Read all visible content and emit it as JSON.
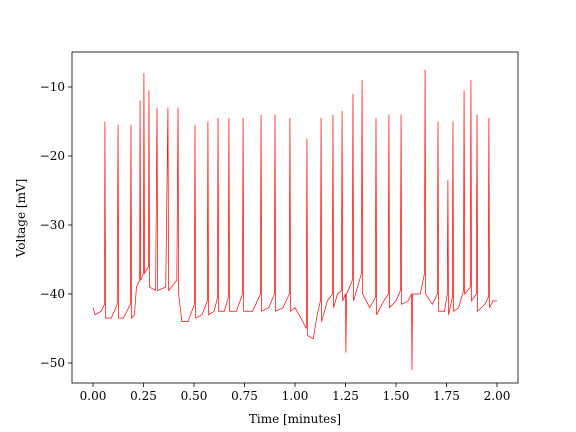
{
  "chart_data": {
    "type": "line",
    "x_label": "Time [minutes]",
    "y_label": "Voltage [mV]",
    "xlim": [
      -0.104,
      2.104
    ],
    "ylim": [
      -52.9,
      -4.93
    ],
    "xticks": [
      {
        "value": 0,
        "label": "0.00"
      },
      {
        "value": 0.25,
        "label": "0.25"
      },
      {
        "value": 0.5,
        "label": "0.50"
      },
      {
        "value": 0.75,
        "label": "0.75"
      },
      {
        "value": 1,
        "label": "1.00"
      },
      {
        "value": 1.25,
        "label": "1.25"
      },
      {
        "value": 1.5,
        "label": "1.50"
      },
      {
        "value": 1.75,
        "label": "1.75"
      },
      {
        "value": 2,
        "label": "2.00"
      }
    ],
    "yticks": [
      {
        "value": -50,
        "label": "−50"
      },
      {
        "value": -40,
        "label": "−40"
      },
      {
        "value": -30,
        "label": "−30"
      },
      {
        "value": -20,
        "label": "−20"
      },
      {
        "value": -10,
        "label": "−10"
      }
    ],
    "x": [
      0.0,
      0.01,
      0.04,
      0.057,
      0.059,
      0.062,
      0.09,
      0.12,
      0.124,
      0.127,
      0.15,
      0.185,
      0.188,
      0.191,
      0.205,
      0.215,
      0.231,
      0.233,
      0.236,
      0.25,
      0.252,
      0.255,
      0.275,
      0.277,
      0.28,
      0.31,
      0.317,
      0.32,
      0.36,
      0.371,
      0.374,
      0.415,
      0.421,
      0.424,
      0.44,
      0.47,
      0.502,
      0.505,
      0.508,
      0.54,
      0.566,
      0.569,
      0.572,
      0.6,
      0.616,
      0.619,
      0.622,
      0.65,
      0.67,
      0.673,
      0.676,
      0.71,
      0.74,
      0.743,
      0.746,
      0.79,
      0.829,
      0.832,
      0.835,
      0.87,
      0.898,
      0.901,
      0.904,
      0.94,
      0.972,
      0.975,
      0.978,
      1.0,
      1.03,
      1.056,
      1.059,
      1.062,
      1.09,
      1.11,
      1.126,
      1.129,
      1.132,
      1.16,
      1.185,
      1.188,
      1.191,
      1.21,
      1.23,
      1.233,
      1.236,
      1.25,
      1.252,
      1.255,
      1.284,
      1.287,
      1.29,
      1.329,
      1.332,
      1.335,
      1.37,
      1.398,
      1.401,
      1.404,
      1.44,
      1.462,
      1.465,
      1.468,
      1.5,
      1.522,
      1.525,
      1.528,
      1.56,
      1.577,
      1.579,
      1.582,
      1.62,
      1.641,
      1.644,
      1.647,
      1.68,
      1.705,
      1.708,
      1.711,
      1.74,
      1.754,
      1.757,
      1.76,
      1.779,
      1.782,
      1.785,
      1.81,
      1.834,
      1.837,
      1.84,
      1.868,
      1.871,
      1.874,
      1.898,
      1.901,
      1.904,
      1.94,
      1.957,
      1.96,
      1.963,
      1.98,
      2.0
    ],
    "series": [
      {
        "color": "#ff0000",
        "values": [
          -42,
          -43,
          -42.5,
          -41.5,
          -15,
          -43.5,
          -43.5,
          -41.5,
          -15.5,
          -43.5,
          -43.5,
          -41.5,
          -15.5,
          -43.5,
          -43,
          -39,
          -38,
          -12,
          -38,
          -37,
          -8,
          -37,
          -36,
          -10.5,
          -39,
          -39.5,
          -13,
          -39.5,
          -39,
          -13,
          -39.5,
          -38,
          -13,
          -40,
          -44,
          -44,
          -41.5,
          -15.5,
          -43.5,
          -43,
          -41,
          -15,
          -43,
          -42.5,
          -40.5,
          -14.5,
          -42.5,
          -42.5,
          -40.5,
          -14.5,
          -42.5,
          -42.5,
          -40,
          -14.5,
          -42.5,
          -42.5,
          -40,
          -14,
          -42.5,
          -42,
          -40,
          -14,
          -42.5,
          -42,
          -40,
          -14.5,
          -42.5,
          -42,
          -43.5,
          -45,
          -17.5,
          -46,
          -46.5,
          -43,
          -41,
          -14.5,
          -44,
          -41,
          -40,
          -14,
          -42,
          -40,
          -39.5,
          -13.5,
          -41,
          -40,
          -48.5,
          -40,
          -38,
          -11,
          -41,
          -37,
          -9,
          -40,
          -42,
          -40.5,
          -14.5,
          -43,
          -41,
          -40,
          -14,
          -42,
          -41,
          -39.5,
          -14,
          -41.5,
          -41,
          -40,
          -51,
          -40,
          -40,
          -37,
          -7.5,
          -40,
          -41.5,
          -40,
          -15,
          -42.5,
          -42.5,
          -40,
          -23.5,
          -43,
          -40.5,
          -15,
          -42.5,
          -42,
          -39.5,
          -10.5,
          -40,
          -39,
          -9,
          -41,
          -40,
          -14,
          -42.5,
          -41.5,
          -40.5,
          -14.5,
          -42,
          -41,
          -41
        ]
      }
    ]
  }
}
